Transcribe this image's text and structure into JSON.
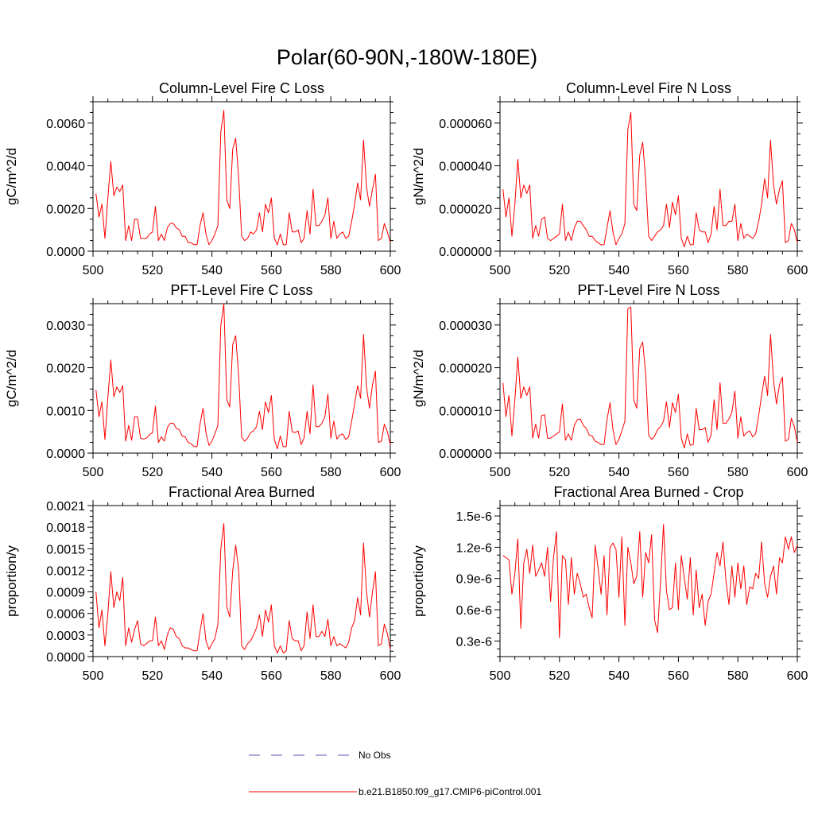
{
  "figure": {
    "title": "Polar(60-90N,-180W-180E)",
    "legend": [
      {
        "label": "No Obs",
        "color": "#5a5ab4",
        "style": "dashed"
      },
      {
        "label": "b.e21.B1850.f09_g17.CMIP6-piControl.001",
        "color": "#ff0000",
        "style": "solid"
      }
    ]
  },
  "chart_data": [
    {
      "type": "line",
      "title": "Column-Level Fire C Loss",
      "xlabel": "",
      "ylabel": "gC/m^2/d",
      "xlim": [
        500,
        600
      ],
      "ylim": [
        0,
        0.007
      ],
      "xticks": [
        500,
        520,
        540,
        560,
        580,
        600
      ],
      "xtick_labels": [
        "500",
        "520",
        "540",
        "560",
        "580",
        "600"
      ],
      "yticks": [
        0,
        0.002,
        0.004,
        0.006
      ],
      "ytick_labels": [
        "0.0000",
        "0.0020",
        "0.0040",
        "0.0060"
      ],
      "series": [
        {
          "name": "b.e21.B1850.f09_g17.CMIP6-piControl.001",
          "color": "#ff0000",
          "x_start": 501,
          "x_step": 1,
          "values": [
            0.0027,
            0.0016,
            0.0022,
            0.0006,
            0.0025,
            0.0042,
            0.0026,
            0.003,
            0.0028,
            0.0031,
            0.0005,
            0.0012,
            0.0005,
            0.0015,
            0.0015,
            0.0006,
            0.0006,
            0.0006,
            0.0008,
            0.0009,
            0.0021,
            0.0005,
            0.0008,
            0.0005,
            0.0011,
            0.0013,
            0.0013,
            0.0011,
            0.001,
            0.0007,
            0.0007,
            0.0004,
            0.0004,
            0.0003,
            0.0003,
            0.0012,
            0.0018,
            0.0008,
            0.0003,
            0.0005,
            0.0008,
            0.0012,
            0.0056,
            0.0066,
            0.0024,
            0.002,
            0.0048,
            0.0053,
            0.0034,
            0.0007,
            0.0005,
            0.0006,
            0.0009,
            0.0008,
            0.001,
            0.0018,
            0.0009,
            0.0022,
            0.0018,
            0.0025,
            0.0006,
            0.0003,
            0.0008,
            0.0003,
            0.0003,
            0.0018,
            0.0009,
            0.0009,
            0.001,
            0.0004,
            0.0006,
            0.0019,
            0.0008,
            0.0029,
            0.0012,
            0.0012,
            0.0014,
            0.0017,
            0.0025,
            0.0006,
            0.0014,
            0.0006,
            0.0008,
            0.0009,
            0.0006,
            0.0007,
            0.0014,
            0.0022,
            0.0032,
            0.0024,
            0.0052,
            0.003,
            0.0021,
            0.0029,
            0.0036,
            0.0005,
            0.0006,
            0.0013,
            0.0009,
            0.0004
          ]
        }
      ]
    },
    {
      "type": "line",
      "title": "Column-Level Fire N Loss",
      "xlabel": "",
      "ylabel": "gN/m^2/d",
      "xlim": [
        500,
        600
      ],
      "ylim": [
        0,
        7e-05
      ],
      "xticks": [
        500,
        520,
        540,
        560,
        580,
        600
      ],
      "xtick_labels": [
        "500",
        "520",
        "540",
        "560",
        "580",
        "600"
      ],
      "yticks": [
        0,
        2e-05,
        4e-05,
        6e-05
      ],
      "ytick_labels": [
        "0.000000",
        "0.000020",
        "0.000040",
        "0.000060"
      ],
      "series": [
        {
          "name": "b.e21.B1850.f09_g17.CMIP6-piControl.001",
          "color": "#ff0000",
          "x_start": 501,
          "x_step": 1,
          "values": [
            2.9e-05,
            1.6e-05,
            2.5e-05,
            7e-06,
            2.2e-05,
            4.3e-05,
            2.5e-05,
            3.1e-05,
            2.7e-05,
            3.1e-05,
            6e-06,
            1.2e-05,
            7e-06,
            1.5e-05,
            1.6e-05,
            6e-06,
            5e-06,
            6e-06,
            7e-06,
            8e-06,
            2.2e-05,
            5e-06,
            9e-06,
            5e-06,
            1.1e-05,
            1.4e-05,
            1.4e-05,
            1.2e-05,
            1e-05,
            7e-06,
            7e-06,
            5e-06,
            4e-06,
            3e-06,
            3e-06,
            1.1e-05,
            1.9e-05,
            9e-06,
            3e-06,
            6e-06,
            8e-06,
            1.3e-05,
            5.7e-05,
            6.5e-05,
            2.2e-05,
            1.9e-05,
            4.5e-05,
            5.1e-05,
            3.3e-05,
            7e-06,
            5e-06,
            7e-06,
            9e-06,
            1e-05,
            1.2e-05,
            2.2e-05,
            1.1e-05,
            2.3e-05,
            1.7e-05,
            2.6e-05,
            6e-06,
            2e-06,
            7e-06,
            3e-06,
            3e-06,
            1.8e-05,
            1e-05,
            9e-06,
            9e-06,
            4e-06,
            8e-06,
            2.1e-05,
            1e-05,
            2.9e-05,
            1.2e-05,
            1.2e-05,
            1.4e-05,
            1.4e-05,
            2.2e-05,
            5e-06,
            1.3e-05,
            6e-06,
            8e-06,
            7e-06,
            6e-06,
            8e-06,
            1.4e-05,
            2.2e-05,
            3.4e-05,
            2.5e-05,
            5.2e-05,
            3.1e-05,
            2.2e-05,
            2.9e-05,
            3.3e-05,
            4e-06,
            5e-06,
            1.3e-05,
            1e-05,
            4e-06
          ]
        }
      ]
    },
    {
      "type": "line",
      "title": "PFT-Level Fire C Loss",
      "xlabel": "",
      "ylabel": "gC/m^2/d",
      "xlim": [
        500,
        600
      ],
      "ylim": [
        0,
        0.0035
      ],
      "xticks": [
        500,
        520,
        540,
        560,
        580,
        600
      ],
      "xtick_labels": [
        "500",
        "520",
        "540",
        "560",
        "580",
        "600"
      ],
      "yticks": [
        0,
        0.001,
        0.002,
        0.003
      ],
      "ytick_labels": [
        "0.0000",
        "0.0010",
        "0.0020",
        "0.0030"
      ],
      "series": [
        {
          "name": "b.e21.B1850.f09_g17.CMIP6-piControl.001",
          "color": "#ff0000",
          "x_start": 501,
          "x_step": 1,
          "values": [
            0.00148,
            0.00085,
            0.0012,
            0.00032,
            0.0013,
            0.00218,
            0.00132,
            0.00155,
            0.00142,
            0.00158,
            0.00028,
            0.00065,
            0.0003,
            0.00085,
            0.00085,
            0.00035,
            0.00033,
            0.00035,
            0.00043,
            0.00048,
            0.0011,
            0.00025,
            0.00038,
            0.00028,
            0.0006,
            0.0007,
            0.0007,
            0.00058,
            0.00055,
            0.0004,
            0.00038,
            0.00025,
            0.00022,
            0.00015,
            0.00015,
            0.00068,
            0.00105,
            0.00048,
            0.00018,
            0.00028,
            0.00045,
            0.00065,
            0.003,
            0.0035,
            0.00125,
            0.00108,
            0.00255,
            0.00275,
            0.00178,
            0.00038,
            0.00028,
            0.00035,
            0.00048,
            0.00052,
            0.00062,
            0.00098,
            0.00055,
            0.0012,
            0.00095,
            0.00135,
            0.00032,
            0.0001,
            0.0004,
            0.00015,
            0.00015,
            0.00098,
            0.0005,
            0.00048,
            0.00052,
            0.0002,
            0.00035,
            0.00098,
            0.00045,
            0.0016,
            0.00062,
            0.00062,
            0.0007,
            0.00085,
            0.00138,
            0.00035,
            0.00075,
            0.00033,
            0.00042,
            0.00045,
            0.00032,
            0.00038,
            0.00075,
            0.00115,
            0.00158,
            0.00128,
            0.00278,
            0.00155,
            0.00105,
            0.0016,
            0.00192,
            0.00025,
            0.00028,
            0.00068,
            0.0005,
            0.0002
          ]
        }
      ]
    },
    {
      "type": "line",
      "title": "PFT-Level Fire N Loss",
      "xlabel": "",
      "ylabel": "gN/m^2/d",
      "xlim": [
        500,
        600
      ],
      "ylim": [
        0,
        3.5e-05
      ],
      "xticks": [
        500,
        520,
        540,
        560,
        580,
        600
      ],
      "xtick_labels": [
        "500",
        "520",
        "540",
        "560",
        "580",
        "600"
      ],
      "yticks": [
        0,
        1e-05,
        2e-05,
        3e-05
      ],
      "ytick_labels": [
        "0.000000",
        "0.000010",
        "0.000020",
        "0.000030"
      ],
      "series": [
        {
          "name": "b.e21.B1850.f09_g17.CMIP6-piControl.001",
          "color": "#ff0000",
          "x_start": 501,
          "x_step": 1,
          "values": [
            1.65e-05,
            8.5e-06,
            1.35e-05,
            4e-06,
            1.25e-05,
            2.25e-05,
            1.28e-05,
            1.55e-05,
            1.35e-05,
            1.55e-05,
            3.5e-06,
            6.8e-06,
            3.5e-06,
            8.8e-06,
            9e-06,
            3.5e-06,
            3.5e-06,
            4e-06,
            4.5e-06,
            5e-06,
            1.15e-05,
            3e-06,
            4.5e-06,
            3e-06,
            6.5e-06,
            7.8e-06,
            8e-06,
            6.5e-06,
            5.8e-06,
            4.2e-06,
            4e-06,
            2.8e-06,
            2.5e-06,
            2e-06,
            2e-06,
            7.8e-06,
            1.18e-05,
            5.5e-06,
            2e-06,
            3.2e-06,
            5.2e-06,
            7.5e-06,
            3.38e-05,
            3.42e-05,
            1.25e-05,
            1.05e-05,
            2.45e-05,
            2.6e-05,
            1.85e-05,
            4.2e-06,
            3.2e-06,
            4e-06,
            5.5e-06,
            6.2e-06,
            7.5e-06,
            1.2e-05,
            6e-06,
            1.18e-05,
            9.5e-06,
            1.38e-05,
            3.5e-06,
            1.2e-06,
            4.5e-06,
            1.8e-06,
            2e-06,
            1.05e-05,
            5.5e-06,
            5.5e-06,
            6e-06,
            2.5e-06,
            4.2e-06,
            1.25e-05,
            5.5e-06,
            1.65e-05,
            7e-06,
            7e-06,
            8e-06,
            9.5e-06,
            1.45e-05,
            3.5e-06,
            8.5e-06,
            4e-06,
            4.8e-06,
            5.2e-06,
            3.8e-06,
            4.5e-06,
            8.8e-06,
            1.35e-05,
            1.8e-05,
            1.35e-05,
            2.78e-05,
            1.7e-05,
            1.15e-05,
            1.6e-05,
            1.78e-05,
            2.8e-06,
            3.2e-06,
            8.2e-06,
            6.2e-06,
            2.5e-06
          ]
        }
      ]
    },
    {
      "type": "line",
      "title": "Fractional Area Burned",
      "xlabel": "",
      "ylabel": "proportion/y",
      "xlim": [
        500,
        600
      ],
      "ylim": [
        0,
        0.0021
      ],
      "xticks": [
        500,
        520,
        540,
        560,
        580,
        600
      ],
      "xtick_labels": [
        "500",
        "520",
        "540",
        "560",
        "580",
        "600"
      ],
      "yticks": [
        0,
        0.0003,
        0.0006,
        0.0009,
        0.0012,
        0.0015,
        0.0018,
        0.0021
      ],
      "ytick_labels": [
        "0.0000",
        "0.0003",
        "0.0006",
        "0.0009",
        "0.0012",
        "0.0015",
        "0.0018",
        "0.0021"
      ],
      "series": [
        {
          "name": "b.e21.B1850.f09_g17.CMIP6-piControl.001",
          "color": "#ff0000",
          "x_start": 501,
          "x_step": 1,
          "values": [
            0.0009,
            0.0004,
            0.00065,
            0.00015,
            0.0006,
            0.00118,
            0.00068,
            0.0009,
            0.00078,
            0.0011,
            0.00015,
            0.0004,
            0.0002,
            0.00038,
            0.0005,
            0.00018,
            0.00015,
            0.00018,
            0.00022,
            0.00022,
            0.00055,
            0.00015,
            0.00022,
            0.0001,
            0.0003,
            0.0004,
            0.00038,
            0.00028,
            0.00025,
            0.00015,
            0.00012,
            0.00012,
            0.0001,
            8e-05,
            8e-05,
            0.00035,
            0.0006,
            0.00022,
            0.0001,
            0.00018,
            0.00025,
            0.00045,
            0.0015,
            0.00185,
            0.0007,
            0.00055,
            0.0012,
            0.00155,
            0.0012,
            0.00015,
            0.0001,
            0.00018,
            0.00022,
            0.0003,
            0.0004,
            0.00058,
            0.00028,
            0.00065,
            0.00048,
            0.00072,
            0.00015,
            5e-05,
            0.00015,
            5e-05,
            8e-05,
            0.0005,
            0.00025,
            0.00022,
            0.00022,
            8e-05,
            0.00015,
            0.00062,
            0.00025,
            0.00072,
            0.00028,
            0.00028,
            0.00035,
            0.00028,
            0.00052,
            0.00015,
            0.00028,
            0.00015,
            0.00018,
            0.00015,
            0.00012,
            0.0002,
            0.0004,
            0.0005,
            0.00082,
            0.00058,
            0.00158,
            0.0009,
            0.00055,
            0.0009,
            0.00118,
            0.00015,
            0.00018,
            0.00045,
            0.00032,
            0.0001
          ]
        }
      ]
    },
    {
      "type": "line",
      "title": "Fractional Area Burned - Crop",
      "xlabel": "",
      "ylabel": "proportion/y",
      "xlim": [
        500,
        600
      ],
      "ylim": [
        1.5e-07,
        1.6e-06
      ],
      "xticks": [
        500,
        520,
        540,
        560,
        580,
        600
      ],
      "xtick_labels": [
        "500",
        "520",
        "540",
        "560",
        "580",
        "600"
      ],
      "yticks": [
        3e-07,
        6e-07,
        9e-07,
        1.2e-06,
        1.5e-06
      ],
      "ytick_labels": [
        "0.3e-6",
        "0.6e-6",
        "0.9e-6",
        "1.2e-6",
        "1.5e-6"
      ],
      "series": [
        {
          "name": "b.e21.B1850.f09_g17.CMIP6-piControl.001",
          "color": "#ff0000",
          "x_start": 501,
          "x_step": 1,
          "values": [
            1.12e-06,
            1.1e-06,
            1.08e-06,
            7.5e-07,
            9.5e-07,
            1.28e-06,
            4.2e-07,
            1.05e-06,
            1.18e-06,
            9.5e-07,
            1.22e-06,
            9.2e-07,
            9.8e-07,
            1.05e-06,
            9.2e-07,
            1.2e-06,
            6.8e-07,
            1.1e-06,
            1.35e-06,
            3.3e-07,
            1.12e-06,
            1.08e-06,
            6.5e-07,
            1.1e-06,
            7.5e-07,
            9.5e-07,
            8.5e-07,
            7.2e-07,
            7.5e-07,
            6.2e-07,
            5.2e-07,
            1.22e-06,
            1e-06,
            7.5e-07,
            1.12e-06,
            5.5e-07,
            1.2e-06,
            1.24e-06,
            1.18e-06,
            7.2e-07,
            1.3e-06,
            4.5e-07,
            1.2e-06,
            1.05e-06,
            8.5e-07,
            9.2e-07,
            1.35e-06,
            7.2e-07,
            1.15e-06,
            1.05e-06,
            1.32e-06,
            5e-07,
            3.8e-07,
            8.8e-07,
            1.42e-06,
            7.8e-07,
            6e-07,
            6.2e-07,
            1.05e-06,
            6e-07,
            1.12e-06,
            9e-07,
            7e-07,
            1.1e-06,
            5.5e-07,
            9.8e-07,
            6.2e-07,
            7.5e-07,
            4.5e-07,
            6.8e-07,
            7.5e-07,
            9.5e-07,
            1.15e-06,
            1.02e-06,
            1.25e-06,
            8.8e-07,
            6.5e-07,
            1.02e-06,
            7.2e-07,
            1.05e-06,
            8e-07,
            1.02e-06,
            6.5e-07,
            8.2e-07,
            8e-07,
            9.5e-07,
            9e-07,
            1.25e-06,
            8.5e-07,
            7.2e-07,
            9.2e-07,
            1.02e-06,
            7.5e-07,
            1.1e-06,
            1.05e-06,
            1.3e-06,
            1.18e-06,
            1.3e-06,
            1.15e-06,
            1.22e-06
          ]
        }
      ]
    }
  ]
}
